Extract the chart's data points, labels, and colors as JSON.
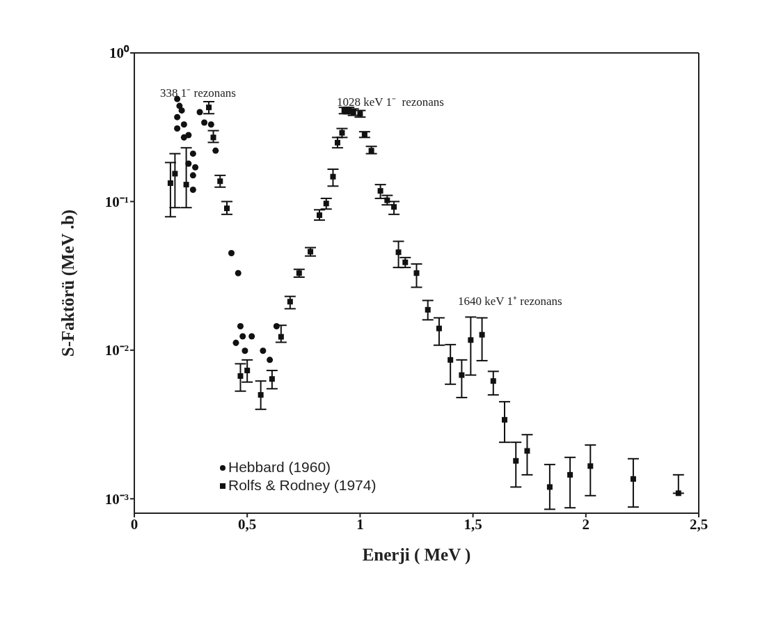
{
  "chart_data": {
    "type": "scatter",
    "xlabel": "Enerji ( MeV )",
    "ylabel": "S-Faktörü (MeV .b)",
    "xlim": [
      0,
      2.5
    ],
    "xticks": [
      0,
      {
        "value": 0.5,
        "label": "0,5"
      },
      1,
      {
        "value": 1.5,
        "label": "1,5"
      },
      2,
      {
        "value": 2.5,
        "label": "2,5"
      }
    ],
    "ylim": [
      0.0008,
      1
    ],
    "log": "y",
    "yticks": [
      {
        "value": 1,
        "label": "10⁰"
      },
      {
        "value": 0.1,
        "label": "10⁻¹"
      },
      {
        "value": 0.01,
        "label": "10⁻²"
      },
      {
        "value": 0.001,
        "label": "10⁻³"
      }
    ],
    "grid": false,
    "legend": "bottom left",
    "annotations": [
      "338 1⁻ rezonans",
      "1028 keV 1⁻  rezonans",
      "1640 keV 1⁺ rezonans"
    ],
    "series": [
      {
        "name": "Hebbard (1960)",
        "color": "#111111",
        "marker": "circle",
        "x": [
          0.19,
          0.2,
          0.21,
          0.19,
          0.19,
          0.22,
          0.24,
          0.22,
          0.26,
          0.24,
          0.27,
          0.26,
          0.26,
          0.29,
          0.31,
          0.34,
          0.36,
          0.43,
          0.46,
          0.47,
          0.45,
          0.48,
          0.52,
          0.49,
          0.57,
          0.6,
          0.63
        ],
        "values": [
          0.49,
          0.44,
          0.41,
          0.37,
          0.31,
          0.33,
          0.28,
          0.27,
          0.21,
          0.18,
          0.17,
          0.15,
          0.12,
          0.4,
          0.34,
          0.33,
          0.22,
          0.045,
          0.033,
          0.0145,
          0.0112,
          0.0124,
          0.0124,
          0.0099,
          0.0099,
          0.0086,
          0.0145
        ]
      },
      {
        "name": "Rolfs & Rodney (1974)",
        "color": "#111111",
        "marker": "square",
        "x": [
          0.16,
          0.18,
          0.23,
          0.33,
          0.35,
          0.38,
          0.41,
          0.47,
          0.5,
          0.56,
          0.61,
          0.65,
          0.69,
          0.73,
          0.78,
          0.82,
          0.85,
          0.88,
          0.9,
          0.92,
          0.93,
          0.95,
          0.97,
          1.0,
          1.02,
          1.05,
          1.09,
          1.12,
          1.15,
          1.17,
          1.2,
          1.25,
          1.3,
          1.35,
          1.4,
          1.45,
          1.49,
          1.54,
          1.59,
          1.64,
          1.69,
          1.74,
          1.84,
          1.93,
          2.02,
          2.21,
          2.41
        ],
        "values": [
          0.133,
          0.154,
          0.13,
          0.43,
          0.27,
          0.137,
          0.09,
          0.0067,
          0.0073,
          0.005,
          0.0064,
          0.0123,
          0.0212,
          0.033,
          0.046,
          0.081,
          0.097,
          0.147,
          0.249,
          0.29,
          0.41,
          0.41,
          0.4,
          0.39,
          0.28,
          0.22,
          0.118,
          0.102,
          0.092,
          0.0456,
          0.039,
          0.033,
          0.0187,
          0.014,
          0.0086,
          0.0068,
          0.0117,
          0.0127,
          0.0062,
          0.0034,
          0.0018,
          0.0021,
          0.0012,
          0.00145,
          0.00166,
          0.00136,
          0.00109
        ],
        "errors": [
          [
            0.079,
            0.183
          ],
          [
            0.091,
            0.21
          ],
          [
            0.091,
            0.23
          ],
          [
            0.39,
            0.47
          ],
          [
            0.25,
            0.3
          ],
          [
            0.125,
            0.15
          ],
          [
            0.082,
            0.1
          ],
          [
            0.0053,
            0.0081
          ],
          [
            0.0061,
            0.0086
          ],
          [
            0.004,
            0.0062
          ],
          [
            0.0055,
            0.0073
          ],
          [
            0.0113,
            0.0147
          ],
          [
            0.019,
            0.023
          ],
          [
            0.031,
            0.035
          ],
          [
            0.043,
            0.049
          ],
          [
            0.075,
            0.088
          ],
          [
            0.089,
            0.105
          ],
          [
            0.127,
            0.165
          ],
          [
            0.23,
            0.27
          ],
          [
            0.27,
            0.31
          ],
          [
            0.39,
            0.43
          ],
          [
            0.39,
            0.43
          ],
          [
            0.38,
            0.42
          ],
          [
            0.37,
            0.41
          ],
          [
            0.27,
            0.295
          ],
          [
            0.21,
            0.235
          ],
          [
            0.105,
            0.13
          ],
          [
            0.095,
            0.11
          ],
          [
            0.082,
            0.1
          ],
          [
            0.036,
            0.054
          ],
          [
            0.036,
            0.042
          ],
          [
            0.0265,
            0.038
          ],
          [
            0.016,
            0.0216
          ],
          [
            0.0108,
            0.0165
          ],
          [
            0.0059,
            0.0109
          ],
          [
            0.0048,
            0.0086
          ],
          [
            0.0068,
            0.0167
          ],
          [
            0.0085,
            0.0165
          ],
          [
            0.005,
            0.0072
          ],
          [
            0.0024,
            0.0045
          ],
          [
            0.0012,
            0.0024
          ],
          [
            0.00145,
            0.0027
          ],
          [
            0.00085,
            0.0017
          ],
          [
            0.00087,
            0.0019
          ],
          [
            0.00105,
            0.0023
          ],
          [
            0.00088,
            0.00186
          ],
          [
            0.00109,
            0.00145
          ]
        ]
      }
    ]
  }
}
